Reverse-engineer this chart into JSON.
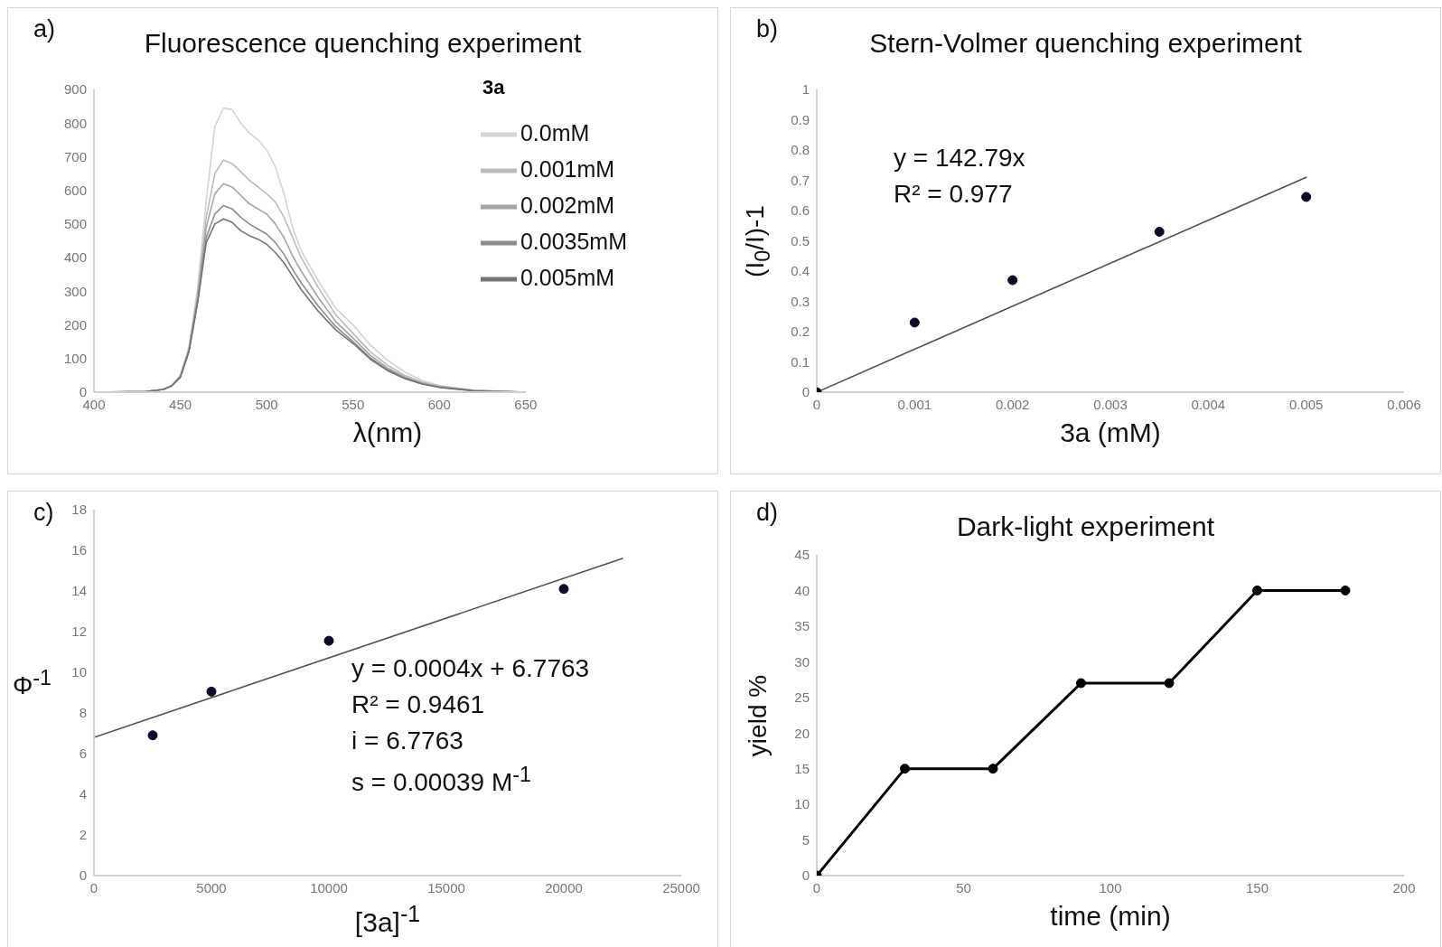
{
  "chart_data": [
    {
      "type": "line",
      "title": "Fluorescence quenching experiment",
      "xlabel": "λ(nm)",
      "legend_title": "3a",
      "legend": "top right",
      "marker": "none",
      "line_style": "solid",
      "grid": false,
      "annotations": [
        "a)"
      ],
      "xlim": [
        400,
        650
      ],
      "xticks": [
        400,
        450,
        500,
        550,
        600,
        650
      ],
      "ylim": [
        0,
        900
      ],
      "yticks": [
        0,
        100,
        200,
        300,
        400,
        500,
        600,
        700,
        800,
        900
      ],
      "x": [
        400,
        430,
        440,
        445,
        450,
        455,
        460,
        465,
        470,
        475,
        480,
        485,
        490,
        495,
        500,
        505,
        510,
        515,
        520,
        530,
        540,
        550,
        560,
        570,
        580,
        590,
        600,
        620,
        650
      ],
      "series": [
        {
          "name": "0.0mM",
          "color": "#d4d4d4",
          "values": [
            0,
            2,
            8,
            20,
            50,
            135,
            310,
            570,
            790,
            845,
            840,
            800,
            770,
            750,
            720,
            670,
            590,
            490,
            420,
            330,
            250,
            200,
            140,
            95,
            60,
            35,
            20,
            6,
            0
          ]
        },
        {
          "name": "0.001mM",
          "color": "#bcbcbc",
          "values": [
            0,
            2,
            8,
            20,
            48,
            130,
            290,
            520,
            650,
            690,
            680,
            655,
            630,
            610,
            590,
            565,
            520,
            460,
            400,
            310,
            230,
            175,
            120,
            80,
            50,
            30,
            18,
            5,
            0
          ]
        },
        {
          "name": "0.002mM",
          "color": "#a4a4a4",
          "values": [
            0,
            2,
            8,
            19,
            46,
            125,
            280,
            490,
            590,
            620,
            610,
            585,
            560,
            545,
            530,
            500,
            460,
            405,
            360,
            280,
            210,
            160,
            110,
            72,
            45,
            27,
            16,
            5,
            0
          ]
        },
        {
          "name": "0.0035mM",
          "color": "#8c8c8c",
          "values": [
            0,
            2,
            8,
            19,
            45,
            122,
            270,
            460,
            530,
            555,
            545,
            520,
            500,
            485,
            470,
            445,
            410,
            365,
            325,
            255,
            195,
            150,
            102,
            67,
            42,
            25,
            15,
            4,
            0
          ]
        },
        {
          "name": "0.005mM",
          "color": "#747474",
          "values": [
            0,
            2,
            8,
            18,
            44,
            120,
            265,
            445,
            500,
            515,
            505,
            480,
            465,
            455,
            440,
            415,
            385,
            345,
            305,
            240,
            185,
            145,
            98,
            64,
            40,
            24,
            14,
            4,
            0
          ]
        }
      ]
    },
    {
      "type": "scatter",
      "title": "Stern-Volmer quenching experiment",
      "xlabel": "3a (mM)",
      "ylabel": "(I$_{0}$/I)-1",
      "marker": "circle",
      "grid": false,
      "annotations": [
        "b)",
        "y = 142.79x",
        "R² = 0.977"
      ],
      "xlim": [
        0,
        0.006
      ],
      "xticks": [
        0,
        0.001,
        0.002,
        0.003,
        0.004,
        0.005,
        0.006
      ],
      "ylim": [
        0,
        1
      ],
      "yticks": [
        0,
        0.1,
        0.2,
        0.3,
        0.4,
        0.5,
        0.6,
        0.7,
        0.8,
        0.9,
        1
      ],
      "x": [
        0,
        0.001,
        0.002,
        0.0035,
        0.005
      ],
      "series": [
        {
          "color": "#0b0b2a",
          "values": [
            0,
            0.23,
            0.37,
            0.53,
            0.645
          ]
        },
        {
          "type": "line",
          "marker": "none",
          "color": "#505050",
          "x": [
            0,
            0.005
          ],
          "values": [
            0,
            0.71
          ]
        }
      ]
    },
    {
      "type": "scatter",
      "xlabel": "[3a]$^{-1}$",
      "ylabel": "Φ$^{-1}$",
      "marker": "circle",
      "grid": false,
      "annotations": [
        "c)",
        "y = 0.0004x + 6.7763",
        "R² = 0.9461",
        "i = 6.7763",
        "s = 0.00039 M$^{-1}$"
      ],
      "xlim": [
        0,
        25000
      ],
      "xticks": [
        0,
        5000,
        10000,
        15000,
        20000,
        25000
      ],
      "ylim": [
        0,
        18
      ],
      "yticks": [
        0,
        2,
        4,
        6,
        8,
        10,
        12,
        14,
        16,
        18
      ],
      "x": [
        2500,
        5000,
        10000,
        20000
      ],
      "series": [
        {
          "color": "#0b0b2a",
          "values": [
            6.9,
            9.05,
            11.55,
            14.1
          ]
        },
        {
          "type": "line",
          "marker": "none",
          "color": "#505050",
          "x": [
            0,
            22500
          ],
          "values": [
            6.8,
            15.6
          ]
        }
      ]
    },
    {
      "type": "line",
      "title": "Dark-light experiment",
      "xlabel": "time (min)",
      "ylabel": "yield %",
      "marker": "circle",
      "line_style": "solid",
      "grid": false,
      "annotations": [
        "d)"
      ],
      "xlim": [
        0,
        200
      ],
      "xticks": [
        0,
        50,
        100,
        150,
        200
      ],
      "ylim": [
        0,
        45
      ],
      "yticks": [
        0,
        5,
        10,
        15,
        20,
        25,
        30,
        35,
        40,
        45
      ],
      "x": [
        0,
        30,
        60,
        90,
        120,
        150,
        180
      ],
      "series": [
        {
          "color": "#000000",
          "values": [
            0,
            15,
            15,
            27,
            27,
            40,
            40
          ]
        }
      ]
    }
  ]
}
